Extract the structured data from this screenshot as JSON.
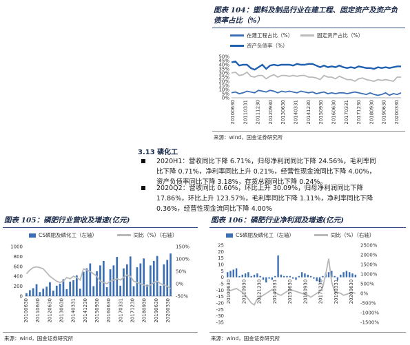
{
  "fig104": {
    "title_line1": "图表 104：塑料及制品行业在建工程、固定资产及资产负",
    "title_line2": "债率占比（%）",
    "legend": [
      "在建工程占比（%）",
      "固定资产占比（%）",
      "资产负债率（%）"
    ],
    "source": "来源：wind，国金证券研究所",
    "colors": {
      "construction": "#3a6fb5",
      "fixed": "#b8b8b8",
      "debt": "#1f5fb0"
    }
  },
  "section": {
    "number_title": "3.13 磷化工",
    "bullets": [
      [
        "2020H1：营收同比下降 6.71%，归母净利润同比下降 24.56%，毛利率同",
        "比下降 0.71%，净利率同比上升 0.21%，经营性现金流同比下降 4.00%，",
        "资产负债率同比下降 3.18%，存货总额同比下降 0.24%。"
      ],
      [
        "2020Q2：营收同比 0.60%，环比上升 30.09%，归母净利润同比下降",
        "17.86%，环比上升 123.57%，毛利率同比下降 1.11%，净利率同比下降",
        "0.36%，经营性现金流同比下降 4.00%"
      ]
    ]
  },
  "fig105": {
    "title": "图表 105：磷肥行业营收及增速(亿元)",
    "legend": [
      "CS磷肥及磷化工（左轴）",
      "同比（%）（右轴）"
    ],
    "source": "来源：wind，国金证券研究所"
  },
  "fig106": {
    "title": "图表 106：磷肥行业净利润及增速(亿元)",
    "legend": [
      "CS磷肥及磷化工（左轴）",
      "同比（%）（右轴）"
    ],
    "source": "来源：wind，国金证券研究所"
  },
  "chart_data": [
    {
      "id": "fig104",
      "type": "line",
      "ylim": [
        0,
        50
      ],
      "yticks": [
        "0%",
        "5%",
        "10%",
        "15%",
        "20%",
        "25%",
        "30%",
        "35%",
        "40%",
        "45%",
        "50%"
      ],
      "xticks": [
        "20100630",
        "20101231",
        "20110630",
        "20111231",
        "20120630",
        "20121231",
        "20130630",
        "20131231",
        "20140630",
        "20141231",
        "20150630",
        "20151231",
        "20160630",
        "20161231",
        "20170630",
        "20171231",
        "20180630",
        "20181231",
        "20190630",
        "20191231",
        "20200630"
      ],
      "x_labels_shown": [
        "20100630",
        "20110331",
        "20111230",
        "20120930",
        "20130630",
        "20140331",
        "20141230",
        "20150930",
        "20160630",
        "20170331",
        "20171230",
        "20180930",
        "20190630",
        "20200330"
      ],
      "series": [
        {
          "name": "在建工程占比（%）",
          "values": [
            6,
            7,
            5,
            6,
            8,
            7,
            6,
            9,
            8,
            7,
            9,
            8,
            6,
            8,
            7,
            8,
            7,
            6,
            8,
            7,
            6,
            7,
            5,
            6,
            7,
            5,
            6,
            5,
            6,
            6,
            5,
            6,
            7,
            6,
            5,
            4,
            6,
            4,
            3,
            4,
            6,
            3,
            5,
            4,
            6
          ]
        },
        {
          "name": "固定资产占比（%）",
          "values": [
            30,
            31,
            27,
            28,
            31,
            26,
            25,
            27,
            27,
            23,
            26,
            28,
            25,
            27,
            27,
            26,
            27,
            26,
            27,
            27,
            25,
            25,
            24,
            22,
            27,
            25,
            25,
            23,
            26,
            24,
            22,
            22,
            20,
            23,
            24,
            22,
            21,
            20,
            22,
            21,
            22,
            21,
            20,
            25,
            25
          ]
        },
        {
          "name": "资产负债率（%）",
          "values": [
            43,
            44,
            39,
            40,
            40,
            36,
            34,
            37,
            40,
            35,
            39,
            40,
            39,
            40,
            40,
            40,
            39,
            41,
            40,
            40,
            41,
            41,
            39,
            37,
            39,
            37,
            38,
            37,
            39,
            37,
            36,
            37,
            36,
            38,
            37,
            36,
            36,
            35,
            37,
            36,
            37,
            36,
            37,
            38,
            38
          ]
        }
      ]
    },
    {
      "id": "fig105",
      "type": "bar",
      "ylim_left": [
        0,
        1000
      ],
      "yticks_left": [
        "0",
        "200",
        "400",
        "600",
        "800",
        "1000"
      ],
      "ylim_right": [
        -50,
        150
      ],
      "yticks_right": [
        "-50%",
        "0%",
        "50%",
        "100%",
        "150%"
      ],
      "xticks": [
        "20100630",
        "20110630",
        "20120630",
        "20130630",
        "20140331",
        "20141230",
        "20150930",
        "20160630",
        "20170331",
        "20171230",
        "20180930",
        "20190630",
        "20200330"
      ],
      "series": [
        {
          "name": "CS磷肥及磷化工（左轴）",
          "values": [
            60,
            120,
            160,
            240,
            80,
            150,
            190,
            280,
            110,
            210,
            250,
            340,
            140,
            290,
            320,
            420,
            150,
            490,
            560,
            660,
            200,
            500,
            620,
            710,
            180,
            540,
            620,
            790,
            210,
            560,
            640,
            800,
            200,
            580,
            660,
            760,
            230,
            620,
            710,
            810,
            210,
            640,
            730,
            860
          ]
        },
        {
          "name": "同比（%）（右轴）",
          "values": [
            40,
            55,
            65,
            68,
            65,
            60,
            45,
            30,
            20,
            10,
            5,
            10,
            25,
            20,
            30,
            25,
            15,
            60,
            55,
            50,
            40,
            30,
            10,
            5,
            0,
            10,
            15,
            20,
            15,
            25,
            35,
            30,
            10,
            5,
            0,
            -5,
            -10,
            -5,
            5,
            10,
            0,
            -5,
            -10,
            -20
          ]
        }
      ]
    },
    {
      "id": "fig106",
      "type": "bar",
      "ylim_left": [
        -35,
        25
      ],
      "yticks_left": [
        "-35",
        "-30",
        "-25",
        "-20",
        "-15",
        "-10",
        "-5",
        "0",
        "5",
        "10",
        "15",
        "20",
        "25"
      ],
      "ylim_right": [
        -1500,
        2500
      ],
      "yticks_right": [
        "-1500%",
        "-1000%",
        "-500%",
        "0%",
        "500%",
        "1000%",
        "1500%",
        "2000%",
        "2500%"
      ],
      "xticks": [
        "20100630",
        "20110930",
        "20121230",
        "20140331",
        "20150630",
        "20160930",
        "20171230",
        "20190331",
        "20200630"
      ],
      "series": [
        {
          "name": "CS磷肥及磷化工（左轴）",
          "values": [
            4,
            5,
            6,
            7,
            1,
            2,
            3,
            4,
            1,
            2,
            3,
            1,
            -2,
            -4,
            -1,
            -2,
            1,
            17,
            2,
            1,
            1,
            1,
            -1,
            -2,
            1,
            4,
            3,
            2,
            1,
            -1,
            -3,
            -4,
            1,
            3,
            4,
            5,
            1,
            -2,
            2,
            4,
            5,
            4,
            3,
            2
          ]
        },
        {
          "name": "同比（%）（右轴）",
          "values": [
            100,
            150,
            200,
            250,
            150,
            50,
            -100,
            -300,
            -500,
            -600,
            -300,
            -200,
            -100,
            0,
            100,
            200,
            50,
            -50,
            -100,
            0,
            100,
            200,
            150,
            100,
            50,
            0,
            -50,
            -100,
            -200,
            -100,
            0,
            100,
            300,
            1000,
            1800,
            600,
            100,
            50,
            0,
            -100,
            -50,
            0,
            50,
            0
          ]
        }
      ]
    }
  ]
}
